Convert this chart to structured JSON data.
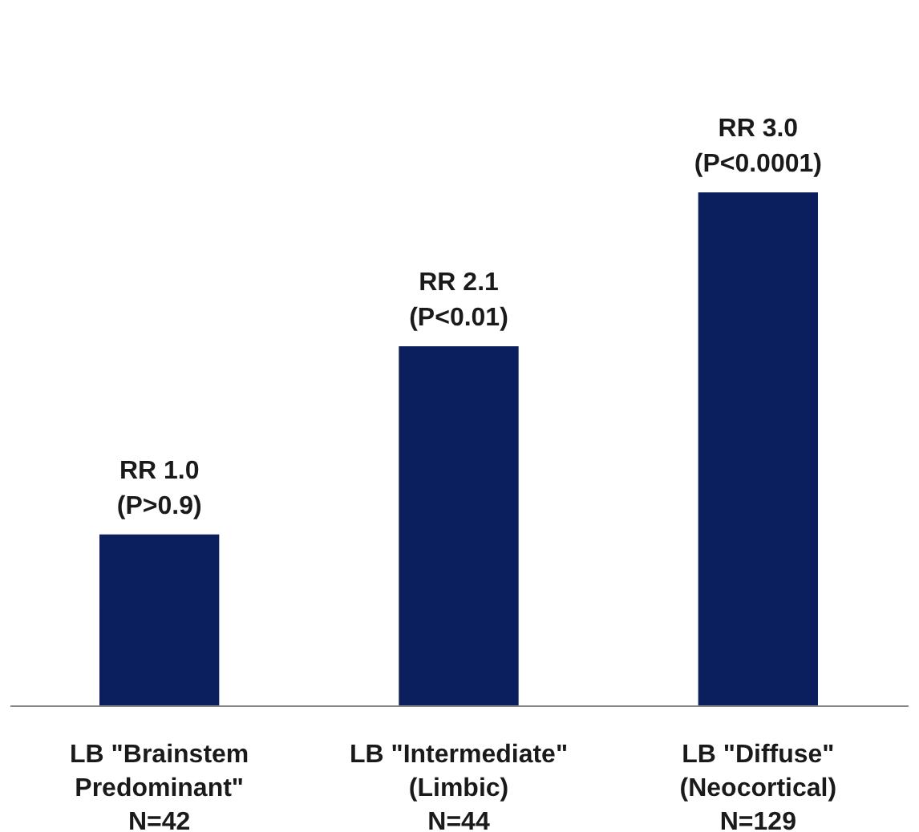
{
  "chart_data": {
    "type": "bar",
    "categories": [
      "LB \"Brainstem\nPredominant\"\nN=42",
      "LB \"Intermediate\"\n(Limbic)\nN=44",
      "LB \"Diffuse\"\n(Neocortical)\nN=129"
    ],
    "values": [
      1.0,
      2.1,
      3.0
    ],
    "color": "#0b1f5e",
    "value_labels": [
      "RR 1.0\n(P>0.9)",
      "RR 2.1\n(P<0.01)",
      "RR 3.0\n(P<0.0001)"
    ],
    "grid": false
  }
}
